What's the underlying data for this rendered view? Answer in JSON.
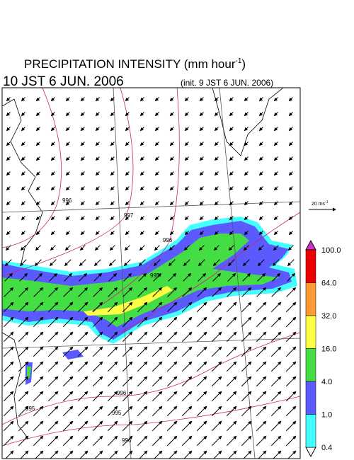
{
  "header": {
    "title": "PRECIPITATION INTENSITY (mm hour",
    "title_sup": "-1",
    "title_end": ")",
    "valid_time": "10 JST 6 JUN. 2006",
    "init_time": "(init. 9 JST 6 JUN. 2006)"
  },
  "wind_scale": {
    "label": "20 ms",
    "label_sup": "-1"
  },
  "legend": {
    "levels": [
      "100.0",
      "64.0",
      "32.0",
      "16.0",
      "4.0",
      "1.0",
      "0.4"
    ],
    "colors": [
      "#ee0000",
      "#ff9933",
      "#ffff44",
      "#44dd44",
      "#5a5aff",
      "#44ffff"
    ],
    "top_color": "#cc33cc",
    "bottom_color": "#ffffff"
  },
  "isobars": [
    "996",
    "997",
    "996",
    "995",
    "995",
    "996",
    "995",
    "996"
  ]
}
